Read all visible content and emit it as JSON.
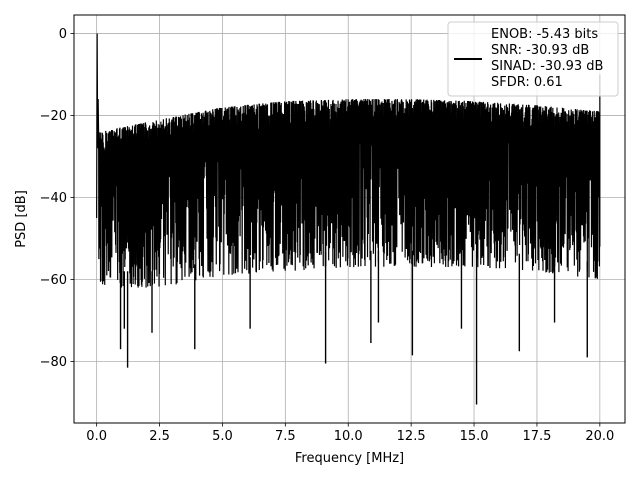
{
  "chart_data": {
    "type": "line",
    "xlabel": "Frequency [MHz]",
    "ylabel": "PSD [dB]",
    "xlim": [
      -0.9,
      21.0
    ],
    "ylim": [
      -95,
      4.5
    ],
    "xticks": [
      0.0,
      2.5,
      5.0,
      7.5,
      10.0,
      12.5,
      15.0,
      17.5,
      20.0
    ],
    "xtick_labels": [
      "0.0",
      "2.5",
      "5.0",
      "7.5",
      "10.0",
      "12.5",
      "15.0",
      "17.5",
      "20.0"
    ],
    "yticks": [
      0,
      -20,
      -40,
      -60,
      -80
    ],
    "ytick_labels": [
      "0",
      "−20",
      "−40",
      "−60",
      "−80"
    ],
    "grid": true,
    "legend_location": "upper right",
    "series": [
      {
        "legend_lines": [
          "ENOB: -5.43 bits",
          "SNR: -30.93 dB",
          "SINAD: -30.93 dB",
          "SFDR: 0.61"
        ],
        "color": "#000000",
        "style": "dense noise spectrum",
        "x_range": [
          0.0,
          20.0
        ],
        "peak": {
          "x": 0.0,
          "y": 0.0
        },
        "upper_envelope": {
          "x": [
            0.1,
            2.5,
            5.0,
            7.5,
            10.0,
            12.5,
            15.0,
            17.5,
            20.0
          ],
          "y": [
            -24,
            -21,
            -18,
            -16.5,
            -16,
            -16,
            -16.5,
            -17.5,
            -19
          ]
        },
        "lower_envelope": {
          "x": [
            0.1,
            2.5,
            5.0,
            7.5,
            10.0,
            12.5,
            15.0,
            17.5,
            20.0
          ],
          "y": [
            -62,
            -62,
            -59,
            -58,
            -57,
            -57,
            -57,
            -58,
            -60
          ]
        },
        "dips": [
          {
            "x": 1.23,
            "y": -81.5
          },
          {
            "x": 9.1,
            "y": -80.5
          },
          {
            "x": 15.1,
            "y": -90.5
          },
          {
            "x": 10.9,
            "y": -75.5
          },
          {
            "x": 12.55,
            "y": -78.5
          },
          {
            "x": 19.5,
            "y": -79.0
          },
          {
            "x": 0.95,
            "y": -77.0
          },
          {
            "x": 3.9,
            "y": -77.0
          },
          {
            "x": 16.8,
            "y": -77.5
          },
          {
            "x": 1.1,
            "y": -72.0
          },
          {
            "x": 2.2,
            "y": -73.0
          },
          {
            "x": 6.1,
            "y": -72.0
          },
          {
            "x": 11.2,
            "y": -70.5
          },
          {
            "x": 14.5,
            "y": -72.0
          },
          {
            "x": 18.2,
            "y": -70.5
          }
        ]
      }
    ]
  }
}
